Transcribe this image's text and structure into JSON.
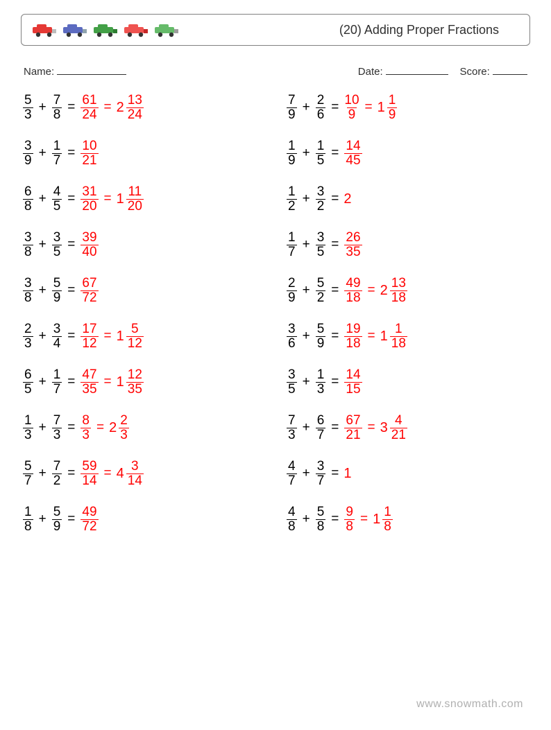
{
  "header": {
    "title": "(20) Adding Proper Fractions",
    "vehicles": [
      {
        "name": "truck-icon",
        "body": "#e53935",
        "accent": "#bdbdbd"
      },
      {
        "name": "sedan-icon",
        "body": "#5c6bc0",
        "accent": "#90a4ae"
      },
      {
        "name": "sports-icon",
        "body": "#43a047",
        "accent": "#2e7d32"
      },
      {
        "name": "car-icon",
        "body": "#ef5350",
        "accent": "#c62828"
      },
      {
        "name": "pickup-icon",
        "body": "#66bb6a",
        "accent": "#9e9e9e"
      }
    ]
  },
  "info": {
    "name_label": "Name:",
    "date_label": "Date:",
    "score_label": "Score:"
  },
  "colors": {
    "text": "#000000",
    "answer": "#ff0000",
    "border": "#808080",
    "footer": "#b0b0b0"
  },
  "footer": "www.snowmath.com",
  "problems": {
    "left": [
      {
        "a": {
          "n": "5",
          "d": "3"
        },
        "b": {
          "n": "7",
          "d": "8"
        },
        "r": {
          "n": "61",
          "d": "24"
        },
        "m": {
          "w": "2",
          "n": "13",
          "d": "24"
        }
      },
      {
        "a": {
          "n": "3",
          "d": "9"
        },
        "b": {
          "n": "1",
          "d": "7"
        },
        "r": {
          "n": "10",
          "d": "21"
        }
      },
      {
        "a": {
          "n": "6",
          "d": "8"
        },
        "b": {
          "n": "4",
          "d": "5"
        },
        "r": {
          "n": "31",
          "d": "20"
        },
        "m": {
          "w": "1",
          "n": "11",
          "d": "20"
        }
      },
      {
        "a": {
          "n": "3",
          "d": "8"
        },
        "b": {
          "n": "3",
          "d": "5"
        },
        "r": {
          "n": "39",
          "d": "40"
        }
      },
      {
        "a": {
          "n": "3",
          "d": "8"
        },
        "b": {
          "n": "5",
          "d": "9"
        },
        "r": {
          "n": "67",
          "d": "72"
        }
      },
      {
        "a": {
          "n": "2",
          "d": "3"
        },
        "b": {
          "n": "3",
          "d": "4"
        },
        "r": {
          "n": "17",
          "d": "12"
        },
        "m": {
          "w": "1",
          "n": "5",
          "d": "12"
        }
      },
      {
        "a": {
          "n": "6",
          "d": "5"
        },
        "b": {
          "n": "1",
          "d": "7"
        },
        "r": {
          "n": "47",
          "d": "35"
        },
        "m": {
          "w": "1",
          "n": "12",
          "d": "35"
        }
      },
      {
        "a": {
          "n": "1",
          "d": "3"
        },
        "b": {
          "n": "7",
          "d": "3"
        },
        "r": {
          "n": "8",
          "d": "3"
        },
        "m": {
          "w": "2",
          "n": "2",
          "d": "3"
        }
      },
      {
        "a": {
          "n": "5",
          "d": "7"
        },
        "b": {
          "n": "7",
          "d": "2"
        },
        "r": {
          "n": "59",
          "d": "14"
        },
        "m": {
          "w": "4",
          "n": "3",
          "d": "14"
        }
      },
      {
        "a": {
          "n": "1",
          "d": "8"
        },
        "b": {
          "n": "5",
          "d": "9"
        },
        "r": {
          "n": "49",
          "d": "72"
        }
      }
    ],
    "right": [
      {
        "a": {
          "n": "7",
          "d": "9"
        },
        "b": {
          "n": "2",
          "d": "6"
        },
        "r": {
          "n": "10",
          "d": "9"
        },
        "m": {
          "w": "1",
          "n": "1",
          "d": "9"
        }
      },
      {
        "a": {
          "n": "1",
          "d": "9"
        },
        "b": {
          "n": "1",
          "d": "5"
        },
        "r": {
          "n": "14",
          "d": "45"
        }
      },
      {
        "a": {
          "n": "1",
          "d": "2"
        },
        "b": {
          "n": "3",
          "d": "2"
        },
        "plain": "2"
      },
      {
        "a": {
          "n": "1",
          "d": "7"
        },
        "b": {
          "n": "3",
          "d": "5"
        },
        "r": {
          "n": "26",
          "d": "35"
        }
      },
      {
        "a": {
          "n": "2",
          "d": "9"
        },
        "b": {
          "n": "5",
          "d": "2"
        },
        "r": {
          "n": "49",
          "d": "18"
        },
        "m": {
          "w": "2",
          "n": "13",
          "d": "18"
        }
      },
      {
        "a": {
          "n": "3",
          "d": "6"
        },
        "b": {
          "n": "5",
          "d": "9"
        },
        "r": {
          "n": "19",
          "d": "18"
        },
        "m": {
          "w": "1",
          "n": "1",
          "d": "18"
        }
      },
      {
        "a": {
          "n": "3",
          "d": "5"
        },
        "b": {
          "n": "1",
          "d": "3"
        },
        "r": {
          "n": "14",
          "d": "15"
        }
      },
      {
        "a": {
          "n": "7",
          "d": "3"
        },
        "b": {
          "n": "6",
          "d": "7"
        },
        "r": {
          "n": "67",
          "d": "21"
        },
        "m": {
          "w": "3",
          "n": "4",
          "d": "21"
        }
      },
      {
        "a": {
          "n": "4",
          "d": "7"
        },
        "b": {
          "n": "3",
          "d": "7"
        },
        "plain": "1"
      },
      {
        "a": {
          "n": "4",
          "d": "8"
        },
        "b": {
          "n": "5",
          "d": "8"
        },
        "r": {
          "n": "9",
          "d": "8"
        },
        "m": {
          "w": "1",
          "n": "1",
          "d": "8"
        }
      }
    ]
  }
}
